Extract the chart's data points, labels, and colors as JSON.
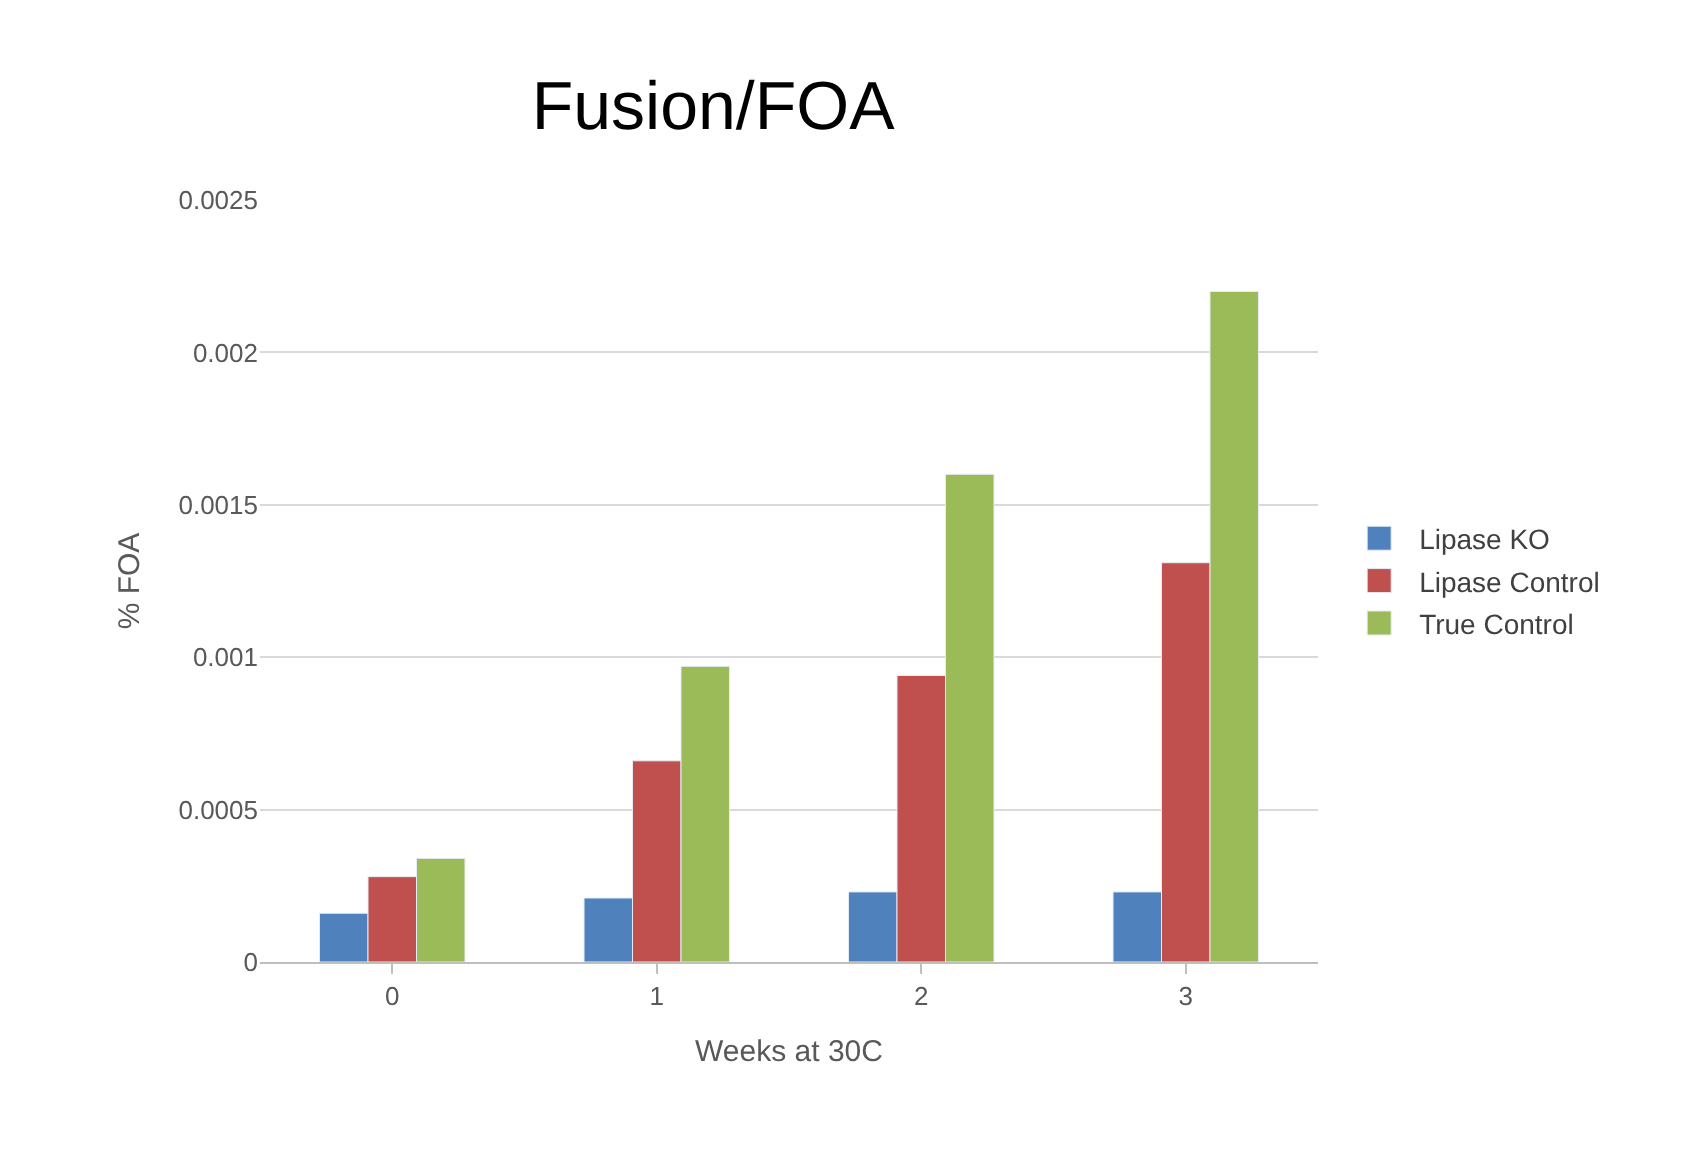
{
  "chart_data": {
    "type": "bar",
    "title": "Fusion/FOA",
    "xlabel": "Weeks at 30C",
    "ylabel": "% FOA",
    "categories": [
      "0",
      "1",
      "2",
      "3"
    ],
    "series": [
      {
        "name": "Lipase KO",
        "color": "#4f81bd",
        "values": [
          0.00016,
          0.00021,
          0.00023,
          0.00023
        ]
      },
      {
        "name": "Lipase Control",
        "color": "#c0504d",
        "values": [
          0.00028,
          0.00066,
          0.00094,
          0.00131
        ]
      },
      {
        "name": "True Control",
        "color": "#9bbb59",
        "values": [
          0.00034,
          0.00097,
          0.0016,
          0.0022
        ]
      }
    ],
    "ylim": [
      0,
      0.0025
    ],
    "yticks": [
      0,
      0.0005,
      0.001,
      0.0015,
      0.002,
      0.0025
    ],
    "grid": "y",
    "legend": "right"
  }
}
